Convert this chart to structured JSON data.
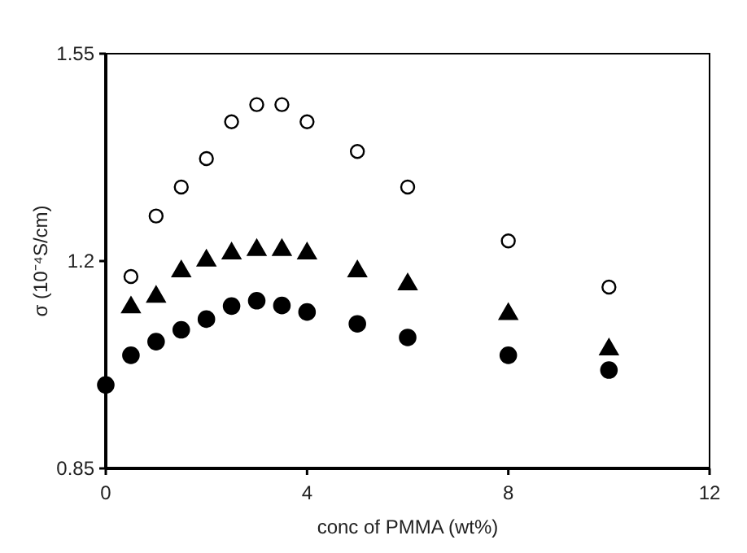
{
  "chart_data": {
    "type": "scatter",
    "xlabel": "conc of PMMA (wt%)",
    "ylabel": "σ (10⁻⁴S/cm)",
    "xlim": [
      0,
      12
    ],
    "xticks": [
      0,
      4,
      8,
      12
    ],
    "ylim": [
      0.85,
      1.55
    ],
    "yticks": [
      0.85,
      1.2,
      1.55
    ],
    "grid": false,
    "series": [
      {
        "color": "#ffffff",
        "marker": "circle",
        "x": [
          0.5,
          1,
          1.5,
          2,
          2.5,
          3,
          3.5,
          4,
          5,
          6,
          8,
          10
        ],
        "values": [
          1.174,
          1.276,
          1.325,
          1.373,
          1.435,
          1.464,
          1.464,
          1.435,
          1.385,
          1.325,
          1.234,
          1.156
        ]
      },
      {
        "color": "#000000",
        "marker": "triangle",
        "x": [
          0.5,
          1,
          1.5,
          2,
          2.5,
          3,
          3.5,
          4,
          5,
          6,
          8,
          10
        ],
        "values": [
          1.124,
          1.142,
          1.185,
          1.203,
          1.215,
          1.221,
          1.221,
          1.215,
          1.185,
          1.163,
          1.113,
          1.053
        ]
      },
      {
        "color": "#000000",
        "marker": "circle",
        "x": [
          0,
          0.5,
          1,
          1.5,
          2,
          2.5,
          3,
          3.5,
          4,
          5,
          6,
          8,
          10
        ],
        "values": [
          0.991,
          1.041,
          1.064,
          1.084,
          1.102,
          1.124,
          1.133,
          1.125,
          1.114,
          1.094,
          1.071,
          1.041,
          1.016
        ]
      }
    ]
  }
}
